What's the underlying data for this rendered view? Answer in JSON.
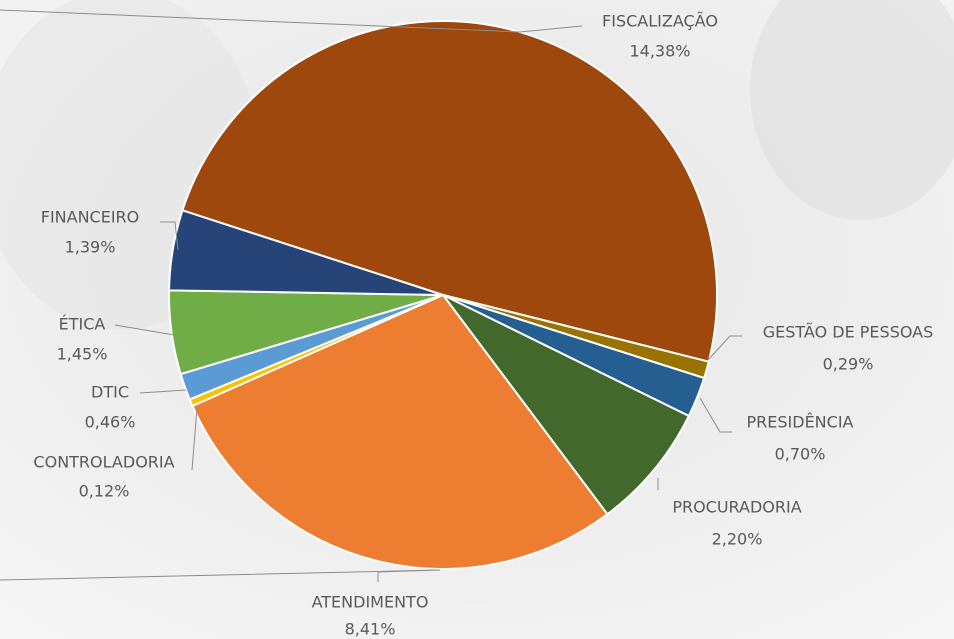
{
  "chart_data": {
    "type": "pie",
    "categories": [
      "FISCALIZAÇÃO",
      "GESTÃO DE PESSOAS",
      "PRESIDÊNCIA",
      "PROCURADORIA",
      "ATENDIMENTO",
      "CONTROLADORIA",
      "DTIC",
      "ÉTICA",
      "FINANCEIRO"
    ],
    "values": [
      14.38,
      0.29,
      0.7,
      2.2,
      8.41,
      0.12,
      0.46,
      1.45,
      1.39
    ],
    "value_labels": [
      "14,38%",
      "0,29%",
      "0,70%",
      "2,20%",
      "8,41%",
      "0,12%",
      "0,46%",
      "1,45%",
      "1,39%"
    ],
    "colors": [
      "#9e480e",
      "#997300",
      "#255e91",
      "#43682b",
      "#ed7d31",
      "#ffc000",
      "#5b9bd5",
      "#70ad47",
      "#264478"
    ]
  }
}
